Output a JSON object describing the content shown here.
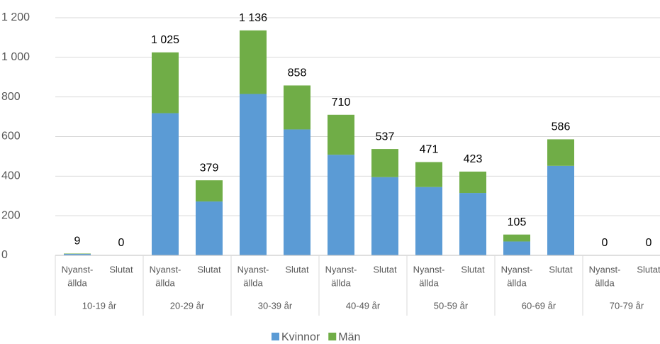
{
  "chart_data": {
    "type": "stacked_bar",
    "categories": [
      [
        "Nyanst-",
        "ällda"
      ],
      [
        "Slutat"
      ],
      [
        "Nyanst-",
        "ällda"
      ],
      [
        "Slutat"
      ],
      [
        "Nyanst-",
        "ällda"
      ],
      [
        "Slutat"
      ],
      [
        "Nyanst-",
        "ällda"
      ],
      [
        "Slutat"
      ],
      [
        "Nyanst-",
        "ällda"
      ],
      [
        "Slutat"
      ],
      [
        "Nyanst-",
        "ällda"
      ],
      [
        "Slutat"
      ],
      [
        "Nyanst-",
        "ällda"
      ],
      [
        "Slutat"
      ]
    ],
    "groups": [
      "10-19 år",
      "20-29 år",
      "30-39 år",
      "40-49 år",
      "50-59 år",
      "60-69 år",
      "70-79 år"
    ],
    "series": [
      {
        "name": "Kvinnor",
        "color": "#5b9bd5",
        "values": [
          7,
          0,
          718,
          272,
          815,
          636,
          508,
          395,
          345,
          315,
          70,
          452,
          0,
          0
        ]
      },
      {
        "name": "Män",
        "color": "#70ad47",
        "values": [
          2,
          0,
          307,
          107,
          321,
          222,
          202,
          142,
          126,
          108,
          35,
          134,
          0,
          0
        ]
      }
    ],
    "totals": [
      9,
      0,
      1025,
      379,
      1136,
      858,
      710,
      537,
      471,
      423,
      105,
      586,
      0,
      0
    ],
    "total_labels": [
      "9",
      "0",
      "1 025",
      "379",
      "1 136",
      "858",
      "710",
      "537",
      "471",
      "423",
      "105",
      "586",
      "0",
      "0"
    ],
    "ylim": [
      0,
      1200
    ],
    "yticks": [
      0,
      200,
      400,
      600,
      800,
      {
        "value": 1000,
        "label": "1 000"
      },
      {
        "value": 1200,
        "label": "1 200"
      }
    ],
    "grid": true,
    "legend": "bottom"
  }
}
